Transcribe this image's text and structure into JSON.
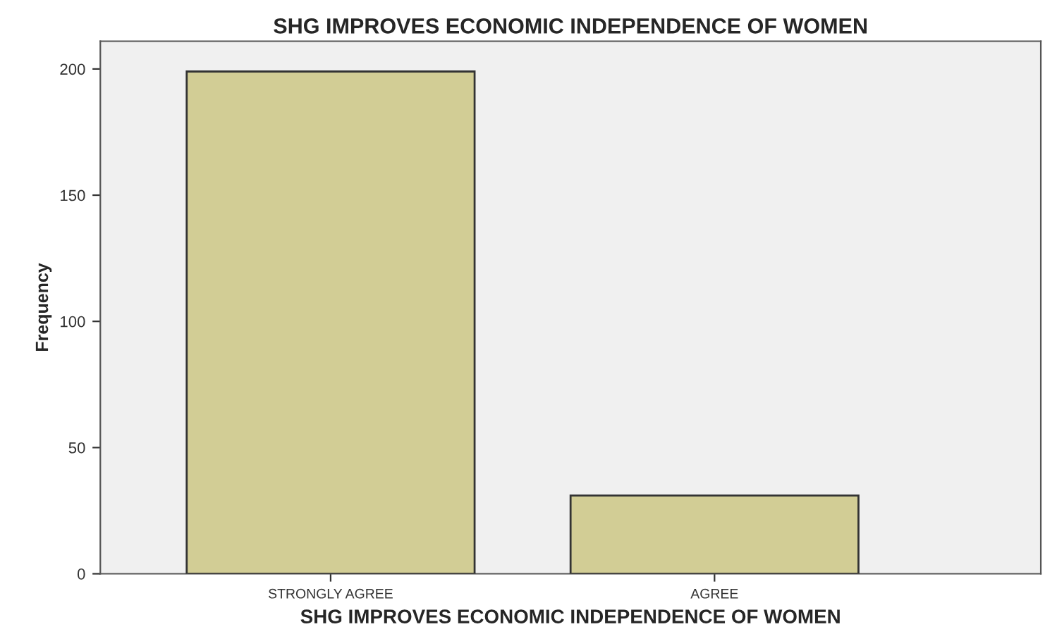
{
  "chart_data": {
    "type": "bar",
    "title": "SHG IMPROVES ECONOMIC INDEPENDENCE OF WOMEN",
    "xlabel": "SHG IMPROVES ECONOMIC INDEPENDENCE OF WOMEN",
    "ylabel": "Frequency",
    "categories": [
      "STRONGLY AGREE",
      "AGREE"
    ],
    "values": [
      199,
      31
    ],
    "color": "#d2cd95",
    "ylim": [
      0,
      211
    ],
    "yticks": [
      0,
      50,
      100,
      150,
      200
    ],
    "grid": false,
    "legend": false
  }
}
